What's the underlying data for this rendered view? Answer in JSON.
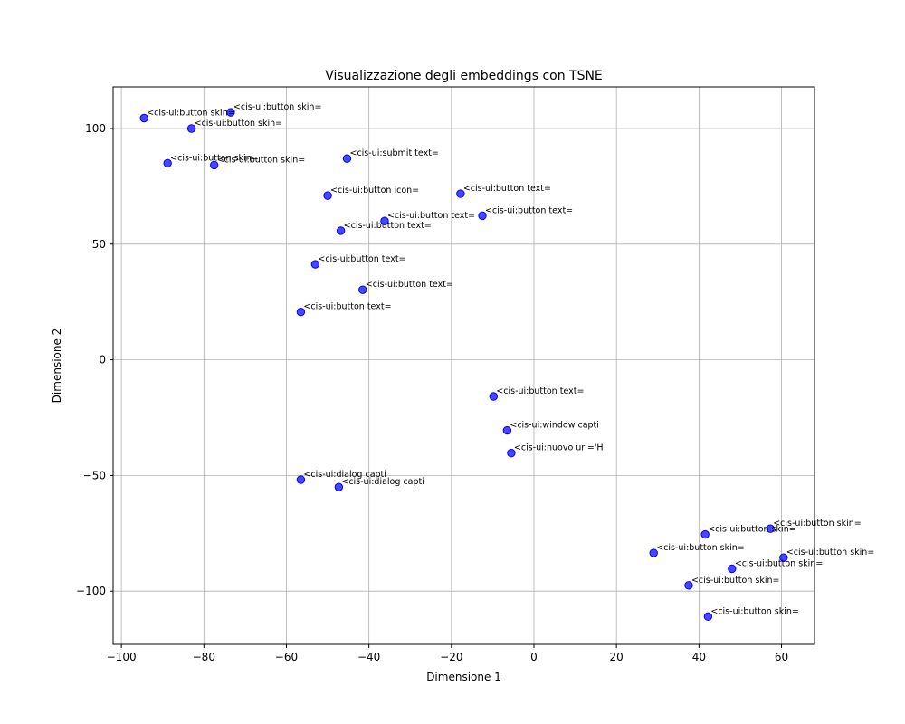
{
  "chart_data": {
    "type": "scatter",
    "title": "Visualizzazione degli embeddings con TSNE",
    "xlabel": "Dimensione 1",
    "ylabel": "Dimensione 2",
    "xlim": [
      -102,
      68
    ],
    "ylim": [
      -123,
      118
    ],
    "xticks": [
      -100,
      -80,
      -60,
      -40,
      -20,
      0,
      20,
      40,
      60
    ],
    "yticks": [
      -100,
      -50,
      0,
      50,
      100
    ],
    "xtick_labels": [
      "−100",
      "−80",
      "−60",
      "−40",
      "−20",
      "0",
      "20",
      "40",
      "60"
    ],
    "ytick_labels": [
      "−100",
      "−50",
      "0",
      "50",
      "100"
    ],
    "grid": true,
    "marker_color": "#0000ff",
    "points": [
      {
        "x": -94.5,
        "y": 104.5,
        "label": "<cis-ui:button skin="
      },
      {
        "x": -73.5,
        "y": 107.0,
        "label": "<cis-ui:button skin="
      },
      {
        "x": -83.0,
        "y": 100.0,
        "label": "<cis-ui:button skin="
      },
      {
        "x": -88.8,
        "y": 85.0,
        "label": "<cis-ui:button skin="
      },
      {
        "x": -77.5,
        "y": 84.2,
        "label": "<cis-ui:button skin="
      },
      {
        "x": -45.3,
        "y": 87.0,
        "label": "<cis-ui:submit text="
      },
      {
        "x": -50.0,
        "y": 71.0,
        "label": "<cis-ui:button icon="
      },
      {
        "x": -17.8,
        "y": 71.8,
        "label": "<cis-ui:button text="
      },
      {
        "x": -12.5,
        "y": 62.3,
        "label": "<cis-ui:button text="
      },
      {
        "x": -36.2,
        "y": 60.0,
        "label": "<cis-ui:button text="
      },
      {
        "x": -46.8,
        "y": 55.8,
        "label": "<cis-ui:button text="
      },
      {
        "x": -53.0,
        "y": 41.3,
        "label": "<cis-ui:button text="
      },
      {
        "x": -41.5,
        "y": 30.3,
        "label": "<cis-ui:button text="
      },
      {
        "x": -56.5,
        "y": 20.7,
        "label": "<cis-ui:button text="
      },
      {
        "x": -9.8,
        "y": -15.8,
        "label": "<cis-ui:button text="
      },
      {
        "x": -6.5,
        "y": -30.5,
        "label": "<cis-ui:window capti"
      },
      {
        "x": -5.5,
        "y": -40.3,
        "label": "<cis-ui:nuovo url='H"
      },
      {
        "x": -56.5,
        "y": -51.8,
        "label": "<cis-ui:dialog capti"
      },
      {
        "x": -47.3,
        "y": -55.0,
        "label": "<cis-ui:dialog capti"
      },
      {
        "x": 57.3,
        "y": -73.0,
        "label": "<cis-ui:button skin="
      },
      {
        "x": 41.5,
        "y": -75.5,
        "label": "<cis-ui:button skin="
      },
      {
        "x": 29.0,
        "y": -83.5,
        "label": "<cis-ui:button skin="
      },
      {
        "x": 60.5,
        "y": -85.5,
        "label": "<cis-ui:button skin="
      },
      {
        "x": 48.0,
        "y": -90.3,
        "label": "<cis-ui:button skin="
      },
      {
        "x": 37.5,
        "y": -97.5,
        "label": "<cis-ui:button skin="
      },
      {
        "x": 42.2,
        "y": -111.0,
        "label": "<cis-ui:button skin="
      }
    ]
  }
}
